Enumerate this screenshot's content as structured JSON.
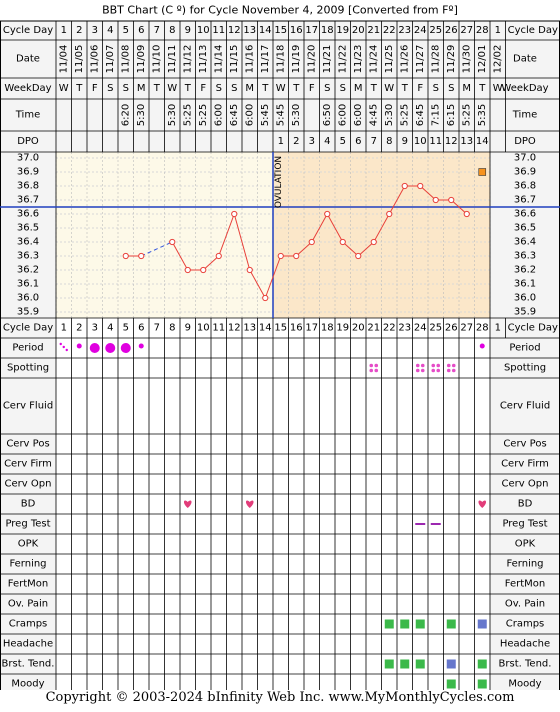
{
  "title": "BBT Chart (C º) for Cycle November 4, 2009  [Converted from Fº]",
  "copyright": "Copyright © 2003-2024 bInfinity Web Inc.    www.MyMonthlyCycles.com",
  "row_labels": {
    "cycle_day": "Cycle Day",
    "date": "Date",
    "weekday": "WeekDay",
    "time": "Time",
    "dpo": "DPO",
    "period": "Period",
    "spotting": "Spotting",
    "cerv_fluid": "Cerv Fluid",
    "cerv_pos": "Cerv Pos",
    "cerv_firm": "Cerv Firm",
    "cerv_opn": "Cerv Opn",
    "bd": "BD",
    "preg_test": "Preg Test",
    "opk": "OPK",
    "ferning": "Ferning",
    "fertmon": "FertMon",
    "ov_pain": "Ov. Pain",
    "cramps": "Cramps",
    "headache": "Headache",
    "brst_tend": "Brst. Tend.",
    "moody": "Moody"
  },
  "right_cycle_day": "1",
  "ovulation_label": "OVULATION",
  "colors": {
    "chart_bg_follicular": "#fdf9e8",
    "chart_bg_luteal": "#fbe7c9",
    "line": "#e8403a",
    "cover_line": "#1f3fbf",
    "ovulation_line": "#1f3fbf",
    "period": "#e000e0",
    "spotting": "#e64dc8",
    "bd": "#e23d7a",
    "preg_test": "#9c28b0",
    "cramps": "#3bb94a",
    "brst_tend": "#3bb94a",
    "moody": "#3bb94a",
    "blue_square": "#6677cc",
    "special_marker": "#f7931e"
  },
  "chart_data": {
    "type": "line",
    "title": "BBT Chart (C º) for Cycle November 4, 2009  [Converted from Fº]",
    "xlabel": "Cycle Day",
    "ylabel": "",
    "ylim": [
      35.9,
      37.0
    ],
    "y_ticks": [
      "37.0",
      "36.9",
      "36.8",
      "36.7",
      "36.6",
      "36.5",
      "36.4",
      "36.3",
      "36.2",
      "36.1",
      "36.0",
      "35.9"
    ],
    "cycle_days": [
      "1",
      "2",
      "3",
      "4",
      "5",
      "6",
      "7",
      "8",
      "9",
      "10",
      "11",
      "12",
      "13",
      "14",
      "15",
      "16",
      "17",
      "18",
      "19",
      "20",
      "21",
      "22",
      "23",
      "24",
      "25",
      "26",
      "27",
      "28"
    ],
    "dates": [
      "11/04",
      "11/05",
      "11/06",
      "11/07",
      "11/08",
      "11/09",
      "11/10",
      "11/11",
      "11/12",
      "11/13",
      "11/14",
      "11/15",
      "11/16",
      "11/17",
      "11/18",
      "11/19",
      "11/20",
      "11/21",
      "11/22",
      "11/23",
      "11/24",
      "11/25",
      "11/26",
      "11/27",
      "11/28",
      "11/29",
      "11/30",
      "12/01"
    ],
    "right_date": "12/02",
    "weekdays": [
      "W",
      "T",
      "F",
      "S",
      "S",
      "M",
      "T",
      "W",
      "T",
      "F",
      "S",
      "S",
      "M",
      "T",
      "W",
      "T",
      "F",
      "S",
      "S",
      "M",
      "T",
      "W",
      "T",
      "F",
      "S",
      "S",
      "M",
      "T"
    ],
    "right_weekday": "W",
    "times": [
      "",
      "",
      "",
      "",
      "6:20",
      "5:30",
      "",
      "5:30",
      "5:25",
      "5:25",
      "6:00",
      "6:45",
      "6:00",
      "5:45",
      "5:45",
      "5:30",
      "",
      "6:50",
      "6:00",
      "6:00",
      "4:45",
      "5:30",
      "5:25",
      "6:45",
      "7:15",
      "6:15",
      "5:25",
      "5:35"
    ],
    "dpo": [
      "",
      "",
      "",
      "",
      "",
      "",
      "",
      "",
      "",
      "",
      "",
      "",
      "",
      "",
      "1",
      "2",
      "3",
      "4",
      "5",
      "6",
      "7",
      "8",
      "9",
      "10",
      "11",
      "12",
      "13",
      "14"
    ],
    "temps": [
      null,
      null,
      null,
      null,
      36.3,
      36.3,
      null,
      36.4,
      36.2,
      36.2,
      36.3,
      36.6,
      36.2,
      36.0,
      36.3,
      36.3,
      36.4,
      36.6,
      36.4,
      36.3,
      36.4,
      36.6,
      36.8,
      36.8,
      36.7,
      36.7,
      36.6,
      null
    ],
    "dashed_segment": [
      6,
      8
    ],
    "cover_line": 36.65,
    "ovulation_day": 14,
    "special_marker": {
      "day": 28,
      "value": 36.9
    },
    "period": [
      "spot",
      "light",
      "heavy",
      "heavy",
      "heavy",
      "light",
      "",
      "",
      "",
      "",
      "",
      "",
      "",
      "",
      "",
      "",
      "",
      "",
      "",
      "",
      "",
      "",
      "",
      "",
      "",
      "",
      "",
      "light"
    ],
    "spotting_days": [
      21,
      24,
      25,
      26
    ],
    "bd_days": [
      9,
      13,
      28
    ],
    "preg_test_days": [
      24,
      25
    ],
    "cramps_green": [
      22,
      23,
      24,
      26
    ],
    "cramps_blue": [
      28
    ],
    "brst_tend_green": [
      22,
      23,
      24,
      28
    ],
    "brst_tend_blue": [
      26
    ],
    "moody_green": [
      26,
      28
    ]
  }
}
